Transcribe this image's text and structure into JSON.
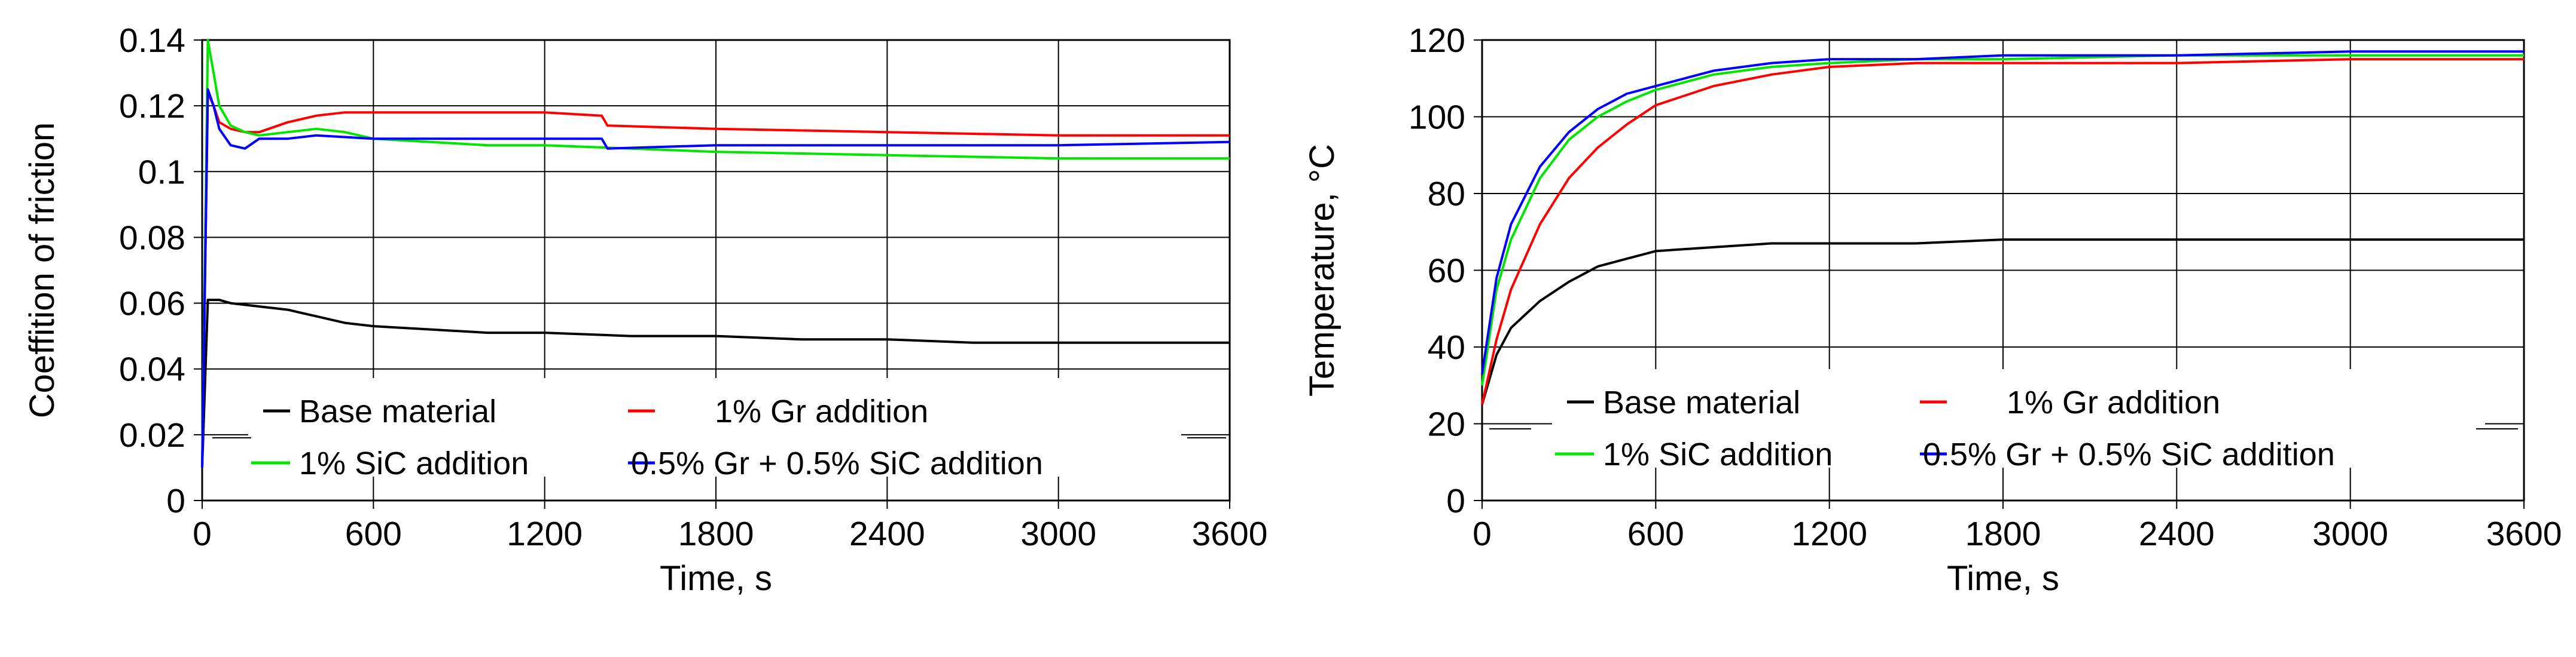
{
  "charts": [
    {
      "type": "line",
      "ylabel": "Coeffition of friction",
      "xlabel": "Time, s",
      "xlim": [
        0,
        3600
      ],
      "ylim": [
        0,
        0.14
      ],
      "xticks": [
        "0",
        "600",
        "1200",
        "1800",
        "2400",
        "3000",
        "3600"
      ],
      "yticks": [
        "0",
        "0.02",
        "0.04",
        "0.06",
        "0.08",
        "0.1",
        "0.12",
        "0.14"
      ],
      "grid": true,
      "legend": {
        "position": "bottom",
        "entries": [
          "Base material",
          "1% Gr addition",
          "1% SiC addition",
          "0.5% Gr + 0.5% SiC addition"
        ]
      },
      "series": [
        {
          "name": "Base material",
          "color": "#000000",
          "x": [
            0,
            20,
            40,
            60,
            100,
            200,
            300,
            400,
            500,
            600,
            800,
            1000,
            1200,
            1500,
            1800,
            2100,
            2400,
            2700,
            3000,
            3300,
            3600
          ],
          "y": [
            0.01,
            0.061,
            0.061,
            0.061,
            0.06,
            0.059,
            0.058,
            0.056,
            0.054,
            0.053,
            0.052,
            0.051,
            0.051,
            0.05,
            0.05,
            0.049,
            0.049,
            0.048,
            0.048,
            0.048,
            0.048
          ]
        },
        {
          "name": "1% Gr addition",
          "color": "#ff0000",
          "x": [
            0,
            20,
            40,
            60,
            100,
            150,
            200,
            300,
            400,
            500,
            600,
            800,
            1000,
            1200,
            1400,
            1420,
            1800,
            2400,
            3000,
            3600
          ],
          "y": [
            0.01,
            0.124,
            0.12,
            0.115,
            0.113,
            0.112,
            0.112,
            0.115,
            0.117,
            0.118,
            0.118,
            0.118,
            0.118,
            0.118,
            0.117,
            0.114,
            0.113,
            0.112,
            0.111,
            0.111
          ]
        },
        {
          "name": "1% SiC addition",
          "color": "#00e600",
          "x": [
            0,
            20,
            40,
            60,
            100,
            150,
            200,
            300,
            400,
            500,
            600,
            800,
            1000,
            1200,
            1500,
            1800,
            2400,
            3000,
            3600
          ],
          "y": [
            0.01,
            0.14,
            0.13,
            0.12,
            0.114,
            0.112,
            0.111,
            0.112,
            0.113,
            0.112,
            0.11,
            0.109,
            0.108,
            0.108,
            0.107,
            0.106,
            0.105,
            0.104,
            0.104
          ]
        },
        {
          "name": "0.5% Gr + 0.5% SiC addition",
          "color": "#0000ff",
          "x": [
            0,
            20,
            40,
            60,
            100,
            150,
            200,
            300,
            400,
            600,
            800,
            1000,
            1200,
            1400,
            1420,
            1800,
            2400,
            3000,
            3600
          ],
          "y": [
            0.01,
            0.125,
            0.12,
            0.113,
            0.108,
            0.107,
            0.11,
            0.11,
            0.111,
            0.11,
            0.11,
            0.11,
            0.11,
            0.11,
            0.107,
            0.108,
            0.108,
            0.108,
            0.109
          ]
        }
      ]
    },
    {
      "type": "line",
      "ylabel": "Temperature,  °C",
      "xlabel": "Time, s",
      "xlim": [
        0,
        3600
      ],
      "ylim": [
        0,
        120
      ],
      "xticks": [
        "0",
        "600",
        "1200",
        "1800",
        "2400",
        "3000",
        "3600"
      ],
      "yticks": [
        "0",
        "20",
        "40",
        "60",
        "80",
        "100",
        "120"
      ],
      "grid": true,
      "legend": {
        "position": "bottom",
        "entries": [
          "Base material",
          "1% Gr addition",
          "1% SiC addition",
          "0.5% Gr + 0.5% SiC addition"
        ]
      },
      "series": [
        {
          "name": "Base material",
          "color": "#000000",
          "x": [
            0,
            50,
            100,
            200,
            300,
            400,
            500,
            600,
            800,
            1000,
            1200,
            1500,
            1800,
            2100,
            2400,
            2700,
            3000,
            3300,
            3600
          ],
          "y": [
            25,
            38,
            45,
            52,
            57,
            61,
            63,
            65,
            66,
            67,
            67,
            67,
            68,
            68,
            68,
            68,
            68,
            68,
            68
          ]
        },
        {
          "name": "1% Gr addition",
          "color": "#ff0000",
          "x": [
            0,
            50,
            100,
            200,
            300,
            400,
            500,
            600,
            800,
            1000,
            1200,
            1500,
            1800,
            2400,
            3000,
            3600
          ],
          "y": [
            25,
            42,
            55,
            72,
            84,
            92,
            98,
            103,
            108,
            111,
            113,
            114,
            114,
            114,
            115,
            115
          ]
        },
        {
          "name": "1% SiC addition",
          "color": "#00e600",
          "x": [
            0,
            50,
            100,
            200,
            300,
            400,
            500,
            600,
            800,
            1000,
            1200,
            1500,
            1800,
            2400,
            3000,
            3600
          ],
          "y": [
            30,
            55,
            68,
            84,
            94,
            100,
            104,
            107,
            111,
            113,
            114,
            115,
            115,
            116,
            116,
            116
          ]
        },
        {
          "name": "0.5% Gr + 0.5% SiC addition",
          "color": "#0000ff",
          "x": [
            0,
            50,
            100,
            200,
            300,
            400,
            500,
            600,
            800,
            1000,
            1200,
            1500,
            1800,
            2400,
            3000,
            3600
          ],
          "y": [
            33,
            58,
            72,
            87,
            96,
            102,
            106,
            108,
            112,
            114,
            115,
            115,
            116,
            116,
            117,
            117
          ]
        }
      ]
    }
  ]
}
